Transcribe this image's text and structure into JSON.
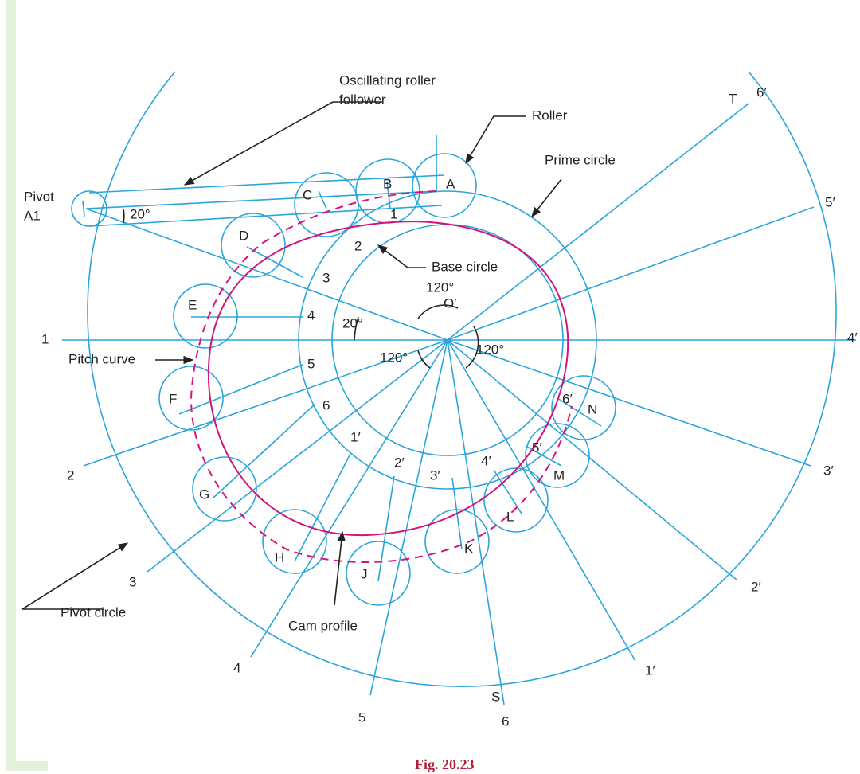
{
  "callouts": {
    "follower_1": "Oscillating roller",
    "follower_2": "follower",
    "roller": "Roller",
    "prime_circle": "Prime circle",
    "pivot": "Pivot",
    "a1": "A1",
    "base_circle": "Base circle",
    "pitch_curve": "Pitch curve",
    "pivot_circle": "Pivot circle",
    "cam_profile": "Cam profile"
  },
  "rollers": [
    "A",
    "B",
    "C",
    "D",
    "E",
    "F",
    "G",
    "H",
    "J",
    "K",
    "L",
    "M",
    "N"
  ],
  "prime_points": [
    "1",
    "2",
    "3",
    "4",
    "5",
    "6",
    "1′",
    "2′",
    "3′",
    "4′",
    "5′",
    "6′"
  ],
  "pivot_points": [
    "1",
    "2",
    "3",
    "4",
    "5",
    "6",
    "1′",
    "2′",
    "3′",
    "4′",
    "5′",
    "6′"
  ],
  "pivot_marks": {
    "s": "S",
    "t": "T"
  },
  "angles": {
    "arm": "20°",
    "top": "120°",
    "center": "O′",
    "left": "20°",
    "bottom_left": "120°",
    "right": "120°"
  },
  "caption": "Fig. 20.23"
}
